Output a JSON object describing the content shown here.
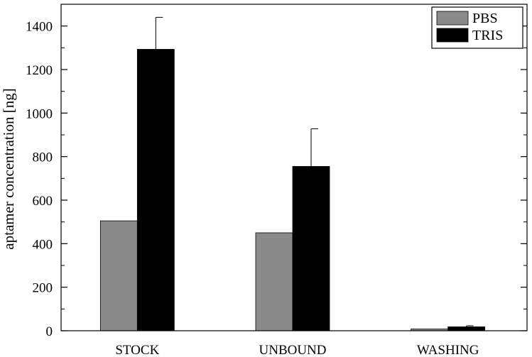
{
  "chart_data": {
    "type": "bar",
    "title": "",
    "xlabel": "",
    "ylabel": "aptamer concentration [ng]",
    "categories": [
      "STOCK",
      "UNBOUND",
      "WASHING"
    ],
    "ylim": [
      0,
      1500
    ],
    "yticks": [
      0,
      200,
      400,
      600,
      800,
      1000,
      1200,
      1400
    ],
    "grid": false,
    "legend_position": "top-right",
    "series": [
      {
        "name": "PBS",
        "values": [
          505,
          450,
          8
        ],
        "errors": [
          null,
          null,
          null
        ],
        "color": "#8a8a8a"
      },
      {
        "name": "TRIS",
        "values": [
          1293,
          755,
          18
        ],
        "errors": [
          147,
          173,
          5
        ],
        "color": "#000000"
      }
    ]
  }
}
